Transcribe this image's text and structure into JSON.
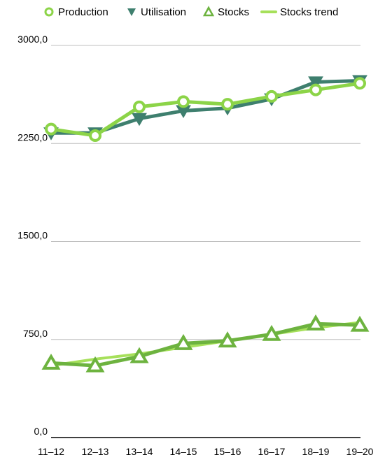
{
  "chart_data": {
    "type": "line",
    "categories": [
      "11–12",
      "12–13",
      "13–14",
      "14–15",
      "15–16",
      "16–17",
      "18–19",
      "19–20"
    ],
    "y_ticks": [
      "0,0",
      "750,0",
      "1500,0",
      "2250,0",
      "3000,0"
    ],
    "ylim": [
      0,
      3000
    ],
    "grid": true,
    "legend_position": "top",
    "series": [
      {
        "name": "Production",
        "values": [
          2360,
          2310,
          2530,
          2570,
          2550,
          2610,
          2660,
          2710
        ],
        "color": "#8cd448",
        "marker": "circle"
      },
      {
        "name": "Utilisation",
        "values": [
          2330,
          2330,
          2440,
          2500,
          2520,
          2590,
          2720,
          2730
        ],
        "color": "#3e7f6e",
        "marker": "triangle-down"
      },
      {
        "name": "Stocks",
        "values": [
          570,
          550,
          620,
          720,
          740,
          790,
          870,
          860
        ],
        "color": "#6db33f",
        "marker": "triangle-up"
      },
      {
        "name": "Stocks trend",
        "values": [
          550,
          600,
          640,
          690,
          740,
          790,
          840,
          880
        ],
        "color": "#a6e05a",
        "marker": "line"
      }
    ]
  }
}
